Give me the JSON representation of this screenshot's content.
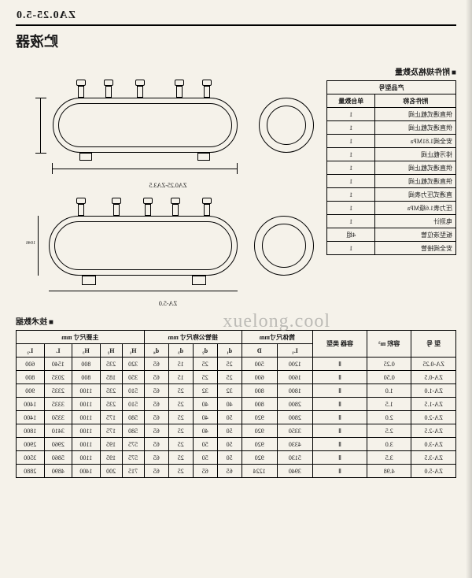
{
  "header": {
    "model_code": "ZA0.25-5.0",
    "title": "贮液器"
  },
  "parts_section": {
    "label": "附件规格及数量",
    "header_top": "产品型号",
    "col_name": "附件名称",
    "col_qty": "单台数量",
    "rows": [
      {
        "name": "供直通式截止阀",
        "qty": "1"
      },
      {
        "name": "供直通式截止阀",
        "qty": "1"
      },
      {
        "name": "安全阀1.81MPa",
        "qty": "1"
      },
      {
        "name": "排污截止阀",
        "qty": "1"
      },
      {
        "name": "供直通式截止阀",
        "qty": "1"
      },
      {
        "name": "供直通式截止阀",
        "qty": "1"
      },
      {
        "name": "直通式压力表阀",
        "qty": "1"
      },
      {
        "name": "压力表1.6级MPa",
        "qty": "1"
      },
      {
        "name": "电测计",
        "qty": "1"
      },
      {
        "name": "板型液位管",
        "qty": "4组"
      },
      {
        "name": "安全阀接管",
        "qty": "1"
      }
    ]
  },
  "diagram1_caption": "ZA0.25-ZA3.5",
  "diagram2_caption": "ZA-5.0",
  "spec_section": {
    "label": "技术数据",
    "group_headers": {
      "model": "型 号",
      "volume": "容积\nm³",
      "type": "容器\n类型",
      "shell": "筒体尺寸mm",
      "pipe": "接管公称尺寸 mm",
      "main": "主要尺寸 mm"
    },
    "sub_headers": [
      "L₁",
      "D",
      "d₁",
      "d₂",
      "d₃",
      "d₄",
      "H₁",
      "H₂",
      "H₃",
      "L",
      "L₂"
    ],
    "rows": [
      [
        "ZA-0.25",
        "0.25",
        "Ⅱ",
        "1200",
        "500",
        "25",
        "25",
        "15",
        "65",
        "320",
        "235",
        "800",
        "1540",
        "600"
      ],
      [
        "ZA-0.5",
        "0.50",
        "Ⅱ",
        "1600",
        "600",
        "25",
        "25",
        "15",
        "65",
        "350",
        "185",
        "800",
        "2035",
        "800"
      ],
      [
        "ZA-1.0",
        "1.0",
        "Ⅱ",
        "1800",
        "800",
        "32",
        "32",
        "25",
        "65",
        "510",
        "235",
        "1100",
        "2335",
        "900"
      ],
      [
        "ZA-1.5",
        "1.5",
        "Ⅱ",
        "2800",
        "800",
        "40",
        "40",
        "25",
        "65",
        "510",
        "235",
        "1100",
        "3335",
        "1400"
      ],
      [
        "ZA-2.0",
        "2.0",
        "Ⅱ",
        "2800",
        "920",
        "50",
        "40",
        "25",
        "65",
        "580",
        "175",
        "1100",
        "3350",
        "1400"
      ],
      [
        "ZA-2.5",
        "2.5",
        "Ⅱ",
        "3350",
        "920",
        "50",
        "40",
        "25",
        "65",
        "580",
        "175",
        "1100",
        "3410",
        "1800"
      ],
      [
        "ZA-3.0",
        "3.0",
        "Ⅱ",
        "4330",
        "920",
        "50",
        "50",
        "25",
        "65",
        "575",
        "195",
        "1100",
        "2960",
        "2900"
      ],
      [
        "ZA-3.5",
        "3.5",
        "Ⅱ",
        "5130",
        "920",
        "50",
        "50",
        "25",
        "65",
        "575",
        "195",
        "1100",
        "5860",
        "3500"
      ],
      [
        "ZA-5.0",
        "4.98",
        "Ⅱ",
        "3940",
        "1224",
        "65",
        "65",
        "25",
        "65",
        "715",
        "200",
        "1400",
        "4890",
        "2880"
      ]
    ]
  },
  "watermark": "xuelong.cool",
  "colors": {
    "bg": "#f5f2ea",
    "ink": "#1a1a1a"
  }
}
